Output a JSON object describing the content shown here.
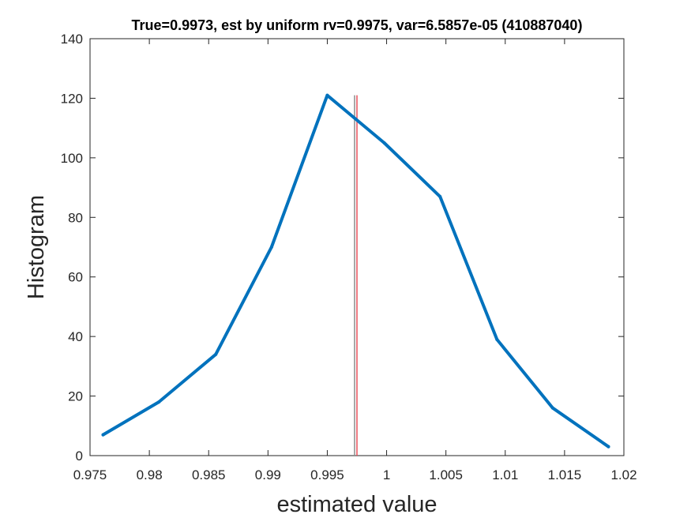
{
  "chart_data": {
    "type": "line",
    "title": "True=0.9973, est by uniform rv=0.9975, var=6.5857e-05 (410887040)",
    "xlabel": "estimated value",
    "ylabel": "Histogram",
    "xlim": [
      0.975,
      1.02
    ],
    "ylim": [
      0,
      140
    ],
    "xticks": [
      0.975,
      0.98,
      0.985,
      0.99,
      0.995,
      1,
      1.005,
      1.01,
      1.015,
      1.02
    ],
    "xtick_labels": [
      "0.975",
      "0.98",
      "0.985",
      "0.99",
      "0.995",
      "1",
      "1.005",
      "1.01",
      "1.015",
      "1.02"
    ],
    "yticks": [
      0,
      20,
      40,
      60,
      80,
      100,
      120,
      140
    ],
    "ytick_labels": [
      "0",
      "20",
      "40",
      "60",
      "80",
      "100",
      "120",
      "140"
    ],
    "grid": false,
    "series": [
      {
        "color": "#0072BD",
        "x": [
          0.9761,
          0.9808,
          0.9856,
          0.9903,
          0.995,
          0.9998,
          1.0045,
          1.0093,
          1.014,
          1.0187
        ],
        "y": [
          7,
          18,
          34,
          70,
          121,
          105,
          87,
          39,
          16,
          3
        ]
      }
    ],
    "vertical_lines": [
      {
        "x": 0.9973,
        "color": "#8c8c8c",
        "y_range": [
          0,
          121
        ]
      },
      {
        "x": 0.9975,
        "color": "#e8505b",
        "y_range": [
          0,
          121
        ]
      }
    ]
  }
}
